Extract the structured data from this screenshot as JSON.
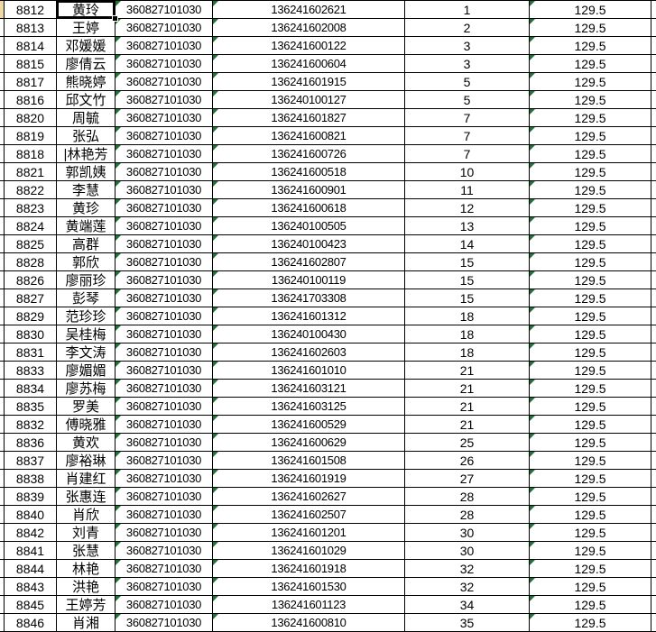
{
  "app": {
    "type": "spreadsheet-grid",
    "description": "Excel-like name list table, no headers visible"
  },
  "colors": {
    "gridline": "#000000",
    "cell_background": "#ffffff",
    "error_indicator_green": "#1E7434",
    "selection_border": "#000000",
    "left_edge_highlight": "#EFD9A2",
    "text": "#000000"
  },
  "selection": {
    "row_index": 0,
    "column": "name",
    "selected_value": "黄玲"
  },
  "left_edge_highlight_row": 0,
  "flagged_columns": [
    "code",
    "phone",
    "score"
  ],
  "table": {
    "columns": [
      "id",
      "name",
      "code",
      "phone",
      "rank",
      "score"
    ],
    "rows": [
      {
        "id": "8812",
        "name": "黄玲",
        "code": "360827101030",
        "phone": "136241602621",
        "rank": "1",
        "score": "129.5"
      },
      {
        "id": "8813",
        "name": "王婷",
        "code": "360827101030",
        "phone": "136241602008",
        "rank": "2",
        "score": "129.5"
      },
      {
        "id": "8814",
        "name": "邓媛媛",
        "code": "360827101030",
        "phone": "136241600122",
        "rank": "3",
        "score": "129.5"
      },
      {
        "id": "8815",
        "name": "廖倩云",
        "code": "360827101030",
        "phone": "136241600604",
        "rank": "3",
        "score": "129.5"
      },
      {
        "id": "8817",
        "name": "熊晓婷",
        "code": "360827101030",
        "phone": "136241601915",
        "rank": "5",
        "score": "129.5"
      },
      {
        "id": "8816",
        "name": "邱文竹",
        "code": "360827101030",
        "phone": "136240100127",
        "rank": "5",
        "score": "129.5"
      },
      {
        "id": "8820",
        "name": "周毓",
        "code": "360827101030",
        "phone": "136241601827",
        "rank": "7",
        "score": "129.5"
      },
      {
        "id": "8819",
        "name": "张弘",
        "code": "360827101030",
        "phone": "136241600821",
        "rank": "7",
        "score": "129.5"
      },
      {
        "id": "8818",
        "name": "|林艳芳",
        "code": "360827101030",
        "phone": "136241600726",
        "rank": "7",
        "score": "129.5"
      },
      {
        "id": "8821",
        "name": "郭凯姨",
        "code": "360827101030",
        "phone": "136241600518",
        "rank": "10",
        "score": "129.5"
      },
      {
        "id": "8822",
        "name": "李慧",
        "code": "360827101030",
        "phone": "136241600901",
        "rank": "11",
        "score": "129.5"
      },
      {
        "id": "8823",
        "name": "黄珍",
        "code": "360827101030",
        "phone": "136241600618",
        "rank": "12",
        "score": "129.5"
      },
      {
        "id": "8824",
        "name": "黄端莲",
        "code": "360827101030",
        "phone": "136240100505",
        "rank": "13",
        "score": "129.5"
      },
      {
        "id": "8825",
        "name": "高群",
        "code": "360827101030",
        "phone": "136240100423",
        "rank": "14",
        "score": "129.5"
      },
      {
        "id": "8828",
        "name": "郭欣",
        "code": "360827101030",
        "phone": "136241602807",
        "rank": "15",
        "score": "129.5"
      },
      {
        "id": "8826",
        "name": "廖丽珍",
        "code": "360827101030",
        "phone": "136240100119",
        "rank": "15",
        "score": "129.5"
      },
      {
        "id": "8827",
        "name": "彭琴",
        "code": "360827101030",
        "phone": "136241703308",
        "rank": "15",
        "score": "129.5"
      },
      {
        "id": "8829",
        "name": "范珍珍",
        "code": "360827101030",
        "phone": "136241601312",
        "rank": "18",
        "score": "129.5"
      },
      {
        "id": "8830",
        "name": "吴桂梅",
        "code": "360827101030",
        "phone": "136240100430",
        "rank": "18",
        "score": "129.5"
      },
      {
        "id": "8831",
        "name": "李文涛",
        "code": "360827101030",
        "phone": "136241602603",
        "rank": "18",
        "score": "129.5"
      },
      {
        "id": "8833",
        "name": "廖媚媚",
        "code": "360827101030",
        "phone": "136241601010",
        "rank": "21",
        "score": "129.5"
      },
      {
        "id": "8834",
        "name": "廖苏梅",
        "code": "360827101030",
        "phone": "136241603121",
        "rank": "21",
        "score": "129.5"
      },
      {
        "id": "8835",
        "name": "罗美",
        "code": "360827101030",
        "phone": "136241603125",
        "rank": "21",
        "score": "129.5"
      },
      {
        "id": "8832",
        "name": "傅晓雅",
        "code": "360827101030",
        "phone": "136241600529",
        "rank": "21",
        "score": "129.5"
      },
      {
        "id": "8836",
        "name": "黄欢",
        "code": "360827101030",
        "phone": "136241600629",
        "rank": "25",
        "score": "129.5"
      },
      {
        "id": "8837",
        "name": "廖裕琳",
        "code": "360827101030",
        "phone": "136241601508",
        "rank": "26",
        "score": "129.5"
      },
      {
        "id": "8838",
        "name": "肖建红",
        "code": "360827101030",
        "phone": "136241601919",
        "rank": "27",
        "score": "129.5"
      },
      {
        "id": "8839",
        "name": "张惠连",
        "code": "360827101030",
        "phone": "136241602627",
        "rank": "28",
        "score": "129.5"
      },
      {
        "id": "8840",
        "name": "肖欣",
        "code": "360827101030",
        "phone": "136241602507",
        "rank": "28",
        "score": "129.5"
      },
      {
        "id": "8842",
        "name": "刘青",
        "code": "360827101030",
        "phone": "136241601201",
        "rank": "30",
        "score": "129.5"
      },
      {
        "id": "8841",
        "name": "张慧",
        "code": "360827101030",
        "phone": "136241601029",
        "rank": "30",
        "score": "129.5"
      },
      {
        "id": "8844",
        "name": "林艳",
        "code": "360827101030",
        "phone": "136241601918",
        "rank": "32",
        "score": "129.5"
      },
      {
        "id": "8843",
        "name": "洪艳",
        "code": "360827101030",
        "phone": "136241601530",
        "rank": "32",
        "score": "129.5"
      },
      {
        "id": "8845",
        "name": "王婷芳",
        "code": "360827101030",
        "phone": "136241601123",
        "rank": "34",
        "score": "129.5"
      },
      {
        "id": "8846",
        "name": "肖湘",
        "code": "360827101030",
        "phone": "136241600810",
        "rank": "35",
        "score": "129.5"
      }
    ]
  }
}
